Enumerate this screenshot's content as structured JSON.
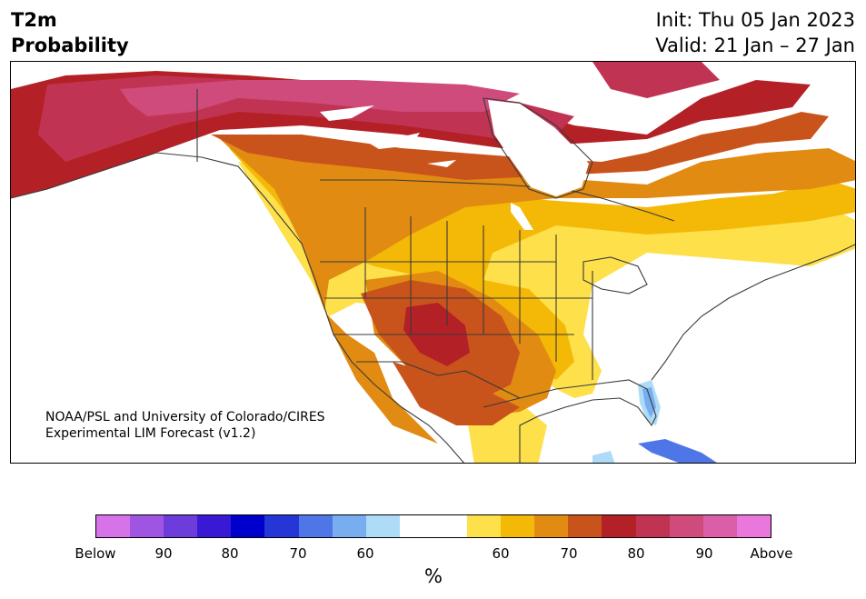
{
  "header": {
    "variable": "T2m",
    "quantity": "Probability",
    "init": "Init: Thu 05 Jan 2023",
    "valid": "Valid: 21 Jan – 27 Jan"
  },
  "credit": {
    "line1": "NOAA/PSL and University of Colorado/CIRES",
    "line2": "Experimental LIM Forecast (v1.2)"
  },
  "colorbar": {
    "colors": [
      "#d673e8",
      "#a055e2",
      "#6c3ddb",
      "#3a19d6",
      "#0000cd",
      "#2437d6",
      "#4f76e6",
      "#78aef0",
      "#aedcf8",
      "#ffffff",
      "#ffffff",
      "#fde04a",
      "#f4b807",
      "#e18b12",
      "#c9541b",
      "#b32127",
      "#c13352",
      "#cf4b7b",
      "#db5ea8",
      "#e977dc"
    ],
    "labels": [
      "Below",
      "90",
      "80",
      "70",
      "60",
      "60",
      "70",
      "80",
      "90",
      "Above"
    ],
    "unit": "%"
  },
  "map_legend": {
    "white": "#ffffff",
    "yellow": "#fde04a",
    "gold": "#f4b807",
    "orange": "#e18b12",
    "burnt": "#c9541b",
    "red": "#b32127",
    "crimson": "#c13352",
    "rose": "#cf4b7b",
    "light_blue": "#aedcf8",
    "mid_blue": "#78aef0",
    "blue": "#4f76e6"
  }
}
